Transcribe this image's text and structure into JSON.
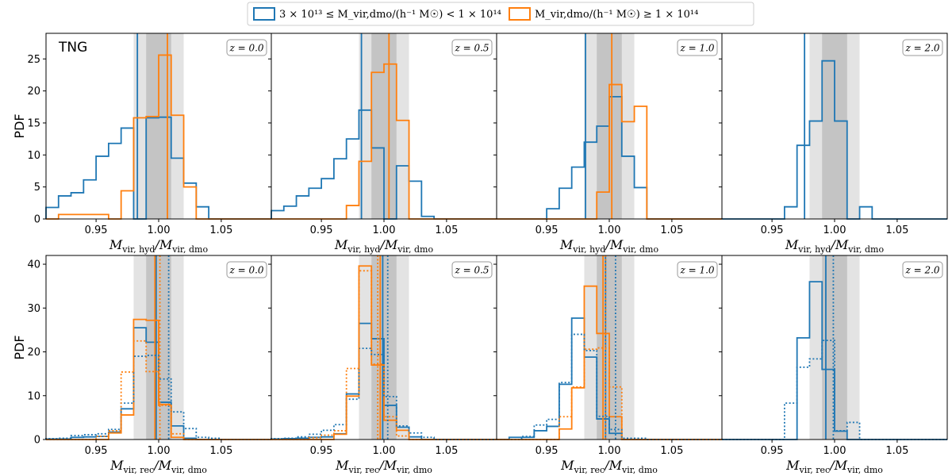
{
  "chart_data": {
    "type": "histogram-grid",
    "legend": {
      "position": "top-center",
      "entries": [
        {
          "label": "3 × 10¹³ ≤ M_vir,dmo/(h⁻¹ M☉) < 1 × 10¹⁴",
          "color": "#1f77b4"
        },
        {
          "label": "M_vir,dmo/(h⁻¹ M☉) ≥ 1 × 10¹⁴",
          "color": "#ff7f0e"
        }
      ]
    },
    "simulation_label": "TNG",
    "bins": [
      0.91,
      0.92,
      0.93,
      0.94,
      0.95,
      0.96,
      0.97,
      0.98,
      0.99,
      1.0,
      1.01,
      1.02,
      1.03,
      1.04,
      1.05,
      1.06,
      1.07,
      1.08,
      1.09
    ],
    "xlim": [
      0.91,
      1.09
    ],
    "xticks": [
      "0.95",
      "1.00",
      "1.05"
    ],
    "shaded_bands": {
      "dark": [
        0.99,
        1.01
      ],
      "light": [
        0.98,
        1.02
      ]
    },
    "rows": [
      {
        "ylabel": "PDF",
        "ylim": [
          0,
          29
        ],
        "yticks": [
          "0",
          "5",
          "10",
          "15",
          "20",
          "25"
        ],
        "xlabel_main": "M",
        "xlabel_sub": "vir, hyd",
        "xlabel_den": "/M",
        "xlabel_den_sub": "vir, dmo",
        "panels": [
          {
            "z_label": "z = 0.0",
            "series": [
              {
                "name": "low",
                "style": "solid",
                "values": [
                  1.8,
                  3.6,
                  4.1,
                  6.1,
                  9.8,
                  11.8,
                  14.2,
                  0.0,
                  15.8,
                  15.9,
                  9.5,
                  5.6,
                  1.9,
                  0,
                  0,
                  0,
                  0,
                  0
                ],
                "median": 0.983
              },
              {
                "name": "high",
                "style": "solid",
                "values": [
                  0,
                  0.7,
                  0.7,
                  0.7,
                  0.7,
                  0,
                  4.4,
                  15.8,
                  16.0,
                  25.6,
                  16.2,
                  5.0,
                  0,
                  0,
                  0,
                  0,
                  0,
                  0
                ],
                "median": 1.007
              }
            ]
          },
          {
            "z_label": "z = 0.5",
            "series": [
              {
                "name": "low",
                "style": "solid",
                "values": [
                  1.3,
                  2.0,
                  3.6,
                  4.8,
                  6.3,
                  9.4,
                  12.5,
                  17.0,
                  11.1,
                  0,
                  8.3,
                  5.9,
                  0.4,
                  0,
                  0,
                  0,
                  0,
                  0
                ],
                "median": 0.982
              },
              {
                "name": "high",
                "style": "solid",
                "values": [
                  0,
                  0,
                  0,
                  0,
                  0,
                  0,
                  2.1,
                  9.0,
                  22.9,
                  24.2,
                  15.4,
                  0,
                  0,
                  0,
                  0,
                  0,
                  0,
                  0
                ],
                "median": 1.004
              }
            ]
          },
          {
            "z_label": "z = 1.0",
            "series": [
              {
                "name": "low",
                "style": "solid",
                "values": [
                  0,
                  0,
                  0,
                  0,
                  1.6,
                  4.8,
                  8.1,
                  12.0,
                  14.5,
                  19.1,
                  9.8,
                  4.9,
                  0,
                  0,
                  0,
                  0,
                  0,
                  0
                ],
                "median": 0.981
              },
              {
                "name": "high",
                "style": "solid",
                "values": [
                  0,
                  0,
                  0,
                  0,
                  0,
                  0,
                  0,
                  0,
                  4.2,
                  21.0,
                  15.2,
                  17.6,
                  0,
                  0,
                  0,
                  0,
                  0,
                  0
                ],
                "median": 1.002
              }
            ]
          },
          {
            "z_label": "z = 2.0",
            "series": [
              {
                "name": "low",
                "style": "solid",
                "values": [
                  0,
                  0,
                  0,
                  0,
                  0,
                  1.9,
                  11.5,
                  15.3,
                  24.7,
                  15.3,
                  0,
                  1.9,
                  0,
                  0,
                  0,
                  0,
                  0,
                  0
                ],
                "median": 0.976
              }
            ]
          }
        ]
      },
      {
        "ylabel": "PDF",
        "ylim": [
          0,
          42
        ],
        "yticks": [
          "0",
          "10",
          "20",
          "30",
          "40"
        ],
        "xlabel_main": "M",
        "xlabel_sub": "vir, rec",
        "xlabel_den": "/M",
        "xlabel_den_sub": "vir, dmo",
        "panels": [
          {
            "z_label": "z = 0.0",
            "series": [
              {
                "name": "low",
                "style": "solid",
                "values": [
                  0.1,
                  0.1,
                  0.5,
                  0.6,
                  0.7,
                  1.7,
                  7.0,
                  25.5,
                  22.2,
                  8.5,
                  3.1,
                  0.3,
                  0,
                  0,
                  0,
                  0,
                  0,
                  0
                ],
                "median": 0.998
              },
              {
                "name": "high",
                "style": "solid",
                "values": [
                  0,
                  0,
                  0,
                  0,
                  0,
                  1.5,
                  5.6,
                  27.4,
                  27.2,
                  8.0,
                  0.5,
                  0,
                  0,
                  0,
                  0,
                  0,
                  0,
                  0
                ],
                "median": 0.997
              },
              {
                "name": "low",
                "style": "dotted",
                "values": [
                  0.2,
                  0.3,
                  0.9,
                  1.1,
                  1.3,
                  2.3,
                  8.3,
                  19.0,
                  19.2,
                  13.8,
                  6.3,
                  2.5,
                  0.5,
                  0.3,
                  0,
                  0,
                  0,
                  0
                ],
                "median": 1.008
              },
              {
                "name": "high",
                "style": "dotted",
                "values": [
                  0,
                  0,
                  0,
                  0,
                  0.7,
                  2.0,
                  15.4,
                  22.5,
                  15.5,
                  7.8,
                  1.3,
                  0,
                  0,
                  0,
                  0,
                  0,
                  0,
                  0
                ],
                "median": 1.001
              }
            ]
          },
          {
            "z_label": "z = 0.5",
            "series": [
              {
                "name": "low",
                "style": "solid",
                "values": [
                  0.1,
                  0.2,
                  0.3,
                  0.5,
                  0.6,
                  1.3,
                  10.4,
                  26.5,
                  23.0,
                  7.8,
                  2.8,
                  0.6,
                  0,
                  0,
                  0,
                  0,
                  0,
                  0
                ],
                "median": 0.999
              },
              {
                "name": "high",
                "style": "solid",
                "values": [
                  0,
                  0,
                  0,
                  0,
                  0,
                  1.2,
                  9.9,
                  39.6,
                  17.0,
                  4.4,
                  2.1,
                  0,
                  0,
                  0,
                  0,
                  0,
                  0,
                  0
                ],
                "median": 0.997
              },
              {
                "name": "low",
                "style": "dotted",
                "values": [
                  0.2,
                  0.3,
                  0.6,
                  1.2,
                  2.1,
                  3.4,
                  9.2,
                  20.8,
                  19.4,
                  9.8,
                  3.1,
                  1.5,
                  0.5,
                  0,
                  0,
                  0,
                  0,
                  0
                ],
                "median": 1.003
              },
              {
                "name": "high",
                "style": "dotted",
                "values": [
                  0,
                  0,
                  0,
                  0.4,
                  1.0,
                  2.0,
                  16.2,
                  38.5,
                  17.2,
                  5.2,
                  0.8,
                  0,
                  0,
                  0,
                  0,
                  0,
                  0,
                  0
                ],
                "median": 0.995
              }
            ]
          },
          {
            "z_label": "z = 1.0",
            "series": [
              {
                "name": "low",
                "style": "solid",
                "values": [
                  0,
                  0.5,
                  0.5,
                  2.0,
                  3.0,
                  12.6,
                  27.7,
                  18.8,
                  4.7,
                  1.4,
                  0,
                  0,
                  0,
                  0,
                  0,
                  0,
                  0,
                  0
                ],
                "median": 0.997
              },
              {
                "name": "high",
                "style": "solid",
                "values": [
                  0,
                  0,
                  0,
                  0,
                  0,
                  2.4,
                  11.8,
                  35.0,
                  24.2,
                  5.2,
                  0,
                  0,
                  0,
                  0,
                  0,
                  0,
                  0,
                  0
                ],
                "median": 0.995
              },
              {
                "name": "low",
                "style": "dotted",
                "values": [
                  0,
                  0,
                  0.7,
                  3.3,
                  4.6,
                  13.0,
                  24.0,
                  20.3,
                  5.3,
                  2.3,
                  0.3,
                  0.3,
                  0,
                  0,
                  0,
                  0,
                  0,
                  0
                ],
                "median": 1.005
              },
              {
                "name": "high",
                "style": "dotted",
                "values": [
                  0,
                  0,
                  0,
                  0,
                  0,
                  5.2,
                  12.0,
                  20.6,
                  20.9,
                  12.0,
                  0,
                  0,
                  0,
                  0,
                  0,
                  0,
                  0,
                  0
                ],
                "median": 0.997
              }
            ]
          },
          {
            "z_label": "z = 2.0",
            "series": [
              {
                "name": "low",
                "style": "solid",
                "values": [
                  0,
                  0,
                  0,
                  0,
                  0,
                  0,
                  23.2,
                  36.0,
                  16.0,
                  1.9,
                  0,
                  0,
                  0,
                  0,
                  0,
                  0,
                  0,
                  0
                ],
                "median": 0.993
              },
              {
                "name": "low",
                "style": "dotted",
                "values": [
                  0,
                  0,
                  0,
                  0,
                  0,
                  8.3,
                  16.5,
                  18.4,
                  22.6,
                  2.0,
                  3.9,
                  0,
                  0,
                  0,
                  0,
                  0,
                  0,
                  0
                ],
                "median": 0.999
              }
            ]
          }
        ]
      }
    ]
  }
}
